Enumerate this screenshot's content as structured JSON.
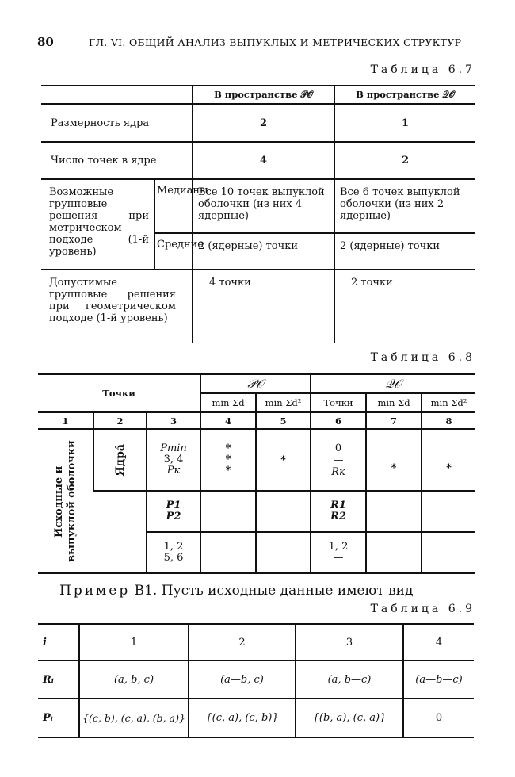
{
  "header": {
    "page_number": "80",
    "running_title": "ГЛ. VI. ОБЩИЙ АНАЛИЗ ВЫПУКЛЫХ И МЕТРИЧЕСКИХ СТРУКТУР"
  },
  "table_6_7": {
    "caption": "Таблица 6.7",
    "col_headers": [
      "В пространстве 𝒫𝒪",
      "В пространстве 𝒬𝒪"
    ],
    "rows": [
      {
        "label": "Размерность ядра",
        "po": "2",
        "qo": "1"
      },
      {
        "label": "Число точек в ядре",
        "po": "4",
        "qo": "2"
      }
    ],
    "possible": {
      "label": "Возможные групповые решения при метрическом подходе (1-й уровень)",
      "sub": [
        {
          "label": "Медианы",
          "po": "Все 10 точек выпуклой оболочки (из них 4 ядерные)",
          "qo": "Все 6 точек выпуклой оболочки (из них 2 ядерные)"
        },
        {
          "label": "Средние",
          "po": "2 (ядерные) точки",
          "qo": "2 (ядерные) точки"
        }
      ]
    },
    "admissible": {
      "label": "Допустимые групповые решения при геометрическом подходе (1-й уровень)",
      "po": "4 точки",
      "qo": "2 точки"
    }
  },
  "table_6_8": {
    "caption": "Таблица 6.8",
    "header_points": "Точки",
    "group_po": "𝒫𝒪",
    "group_qo": "𝒬𝒪",
    "sub_headers": [
      "min Σd",
      "min Σd²",
      "Точки",
      "min Σd",
      "min Σd²"
    ],
    "col_numbers": [
      "1",
      "2",
      "3",
      "4",
      "5",
      "6",
      "7",
      "8"
    ],
    "row_group_label": "Исходные и выпуклой оболочки",
    "kernel_label": "Ядра́",
    "rows": [
      {
        "c3": [
          "Pmin",
          "3, 4",
          "Pк"
        ],
        "c4": [
          "*",
          "*",
          "*"
        ],
        "c5": "*",
        "c6": [
          "0",
          "—",
          "Rк"
        ],
        "c7": "*",
        "c8": "*"
      },
      {
        "c3": [
          "P1",
          "P2"
        ],
        "c4": "",
        "c5": "",
        "c6": [
          "R1",
          "R2"
        ],
        "c7": "",
        "c8": ""
      },
      {
        "c3": [
          "1, 2",
          "5, 6"
        ],
        "c4": "",
        "c5": "",
        "c6": [
          "1, 2",
          "—"
        ],
        "c7": "",
        "c8": ""
      }
    ]
  },
  "example": {
    "label": "Пример",
    "text": "B1. Пусть исходные данные имеют вид"
  },
  "table_6_9": {
    "caption": "Таблица 6.9",
    "row_labels": [
      "i",
      "Rᵢ",
      "Pᵢ"
    ],
    "header": [
      "1",
      "2",
      "3",
      "4"
    ],
    "R": [
      "(a, b, c)",
      "(a—b, c)",
      "(a, b—c)",
      "(a—b—c)"
    ],
    "P": [
      "{(c, b), (c, a), (b, a)}",
      "{(c, a), (c, b)}",
      "{(b, a), (c, a)}",
      "0"
    ]
  }
}
